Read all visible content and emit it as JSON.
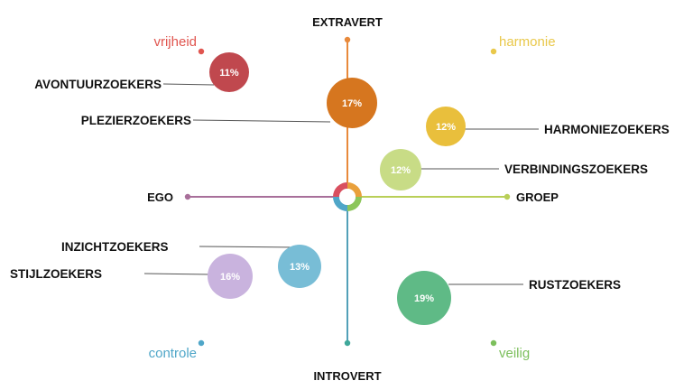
{
  "axes": {
    "top": "EXTRAVERT",
    "bottom": "INTROVERT",
    "left": "EGO",
    "right": "GROEP"
  },
  "corners": {
    "top_left": {
      "text": "vrijheid",
      "color": "#e0554f"
    },
    "top_right": {
      "text": "harmonie",
      "color": "#e9c84a"
    },
    "bottom_left": {
      "text": "controle",
      "color": "#4fa6c8"
    },
    "bottom_right": {
      "text": "veilig",
      "color": "#7cbf5c"
    }
  },
  "segments": [
    {
      "id": "avontuur",
      "label": "AVONTUURZOEKERS",
      "percent": "11%",
      "color": "#c0484e"
    },
    {
      "id": "plezier",
      "label": "PLEZIERZOEKERS",
      "percent": "17%",
      "color": "#d6761f"
    },
    {
      "id": "harmonie",
      "label": "HARMONIEZOEKERS",
      "percent": "12%",
      "color": "#e9bf3c"
    },
    {
      "id": "verbinding",
      "label": "VERBINDINGSZOEKERS",
      "percent": "12%",
      "color": "#c8dc86"
    },
    {
      "id": "inzicht",
      "label": "INZICHTZOEKERS",
      "percent": "13%",
      "color": "#78bdd6"
    },
    {
      "id": "stijl",
      "label": "STIJLZOEKERS",
      "percent": "16%",
      "color": "#c9b3de"
    },
    {
      "id": "rust",
      "label": "RUSTZOEKERS",
      "percent": "19%",
      "color": "#5fba86"
    }
  ]
}
